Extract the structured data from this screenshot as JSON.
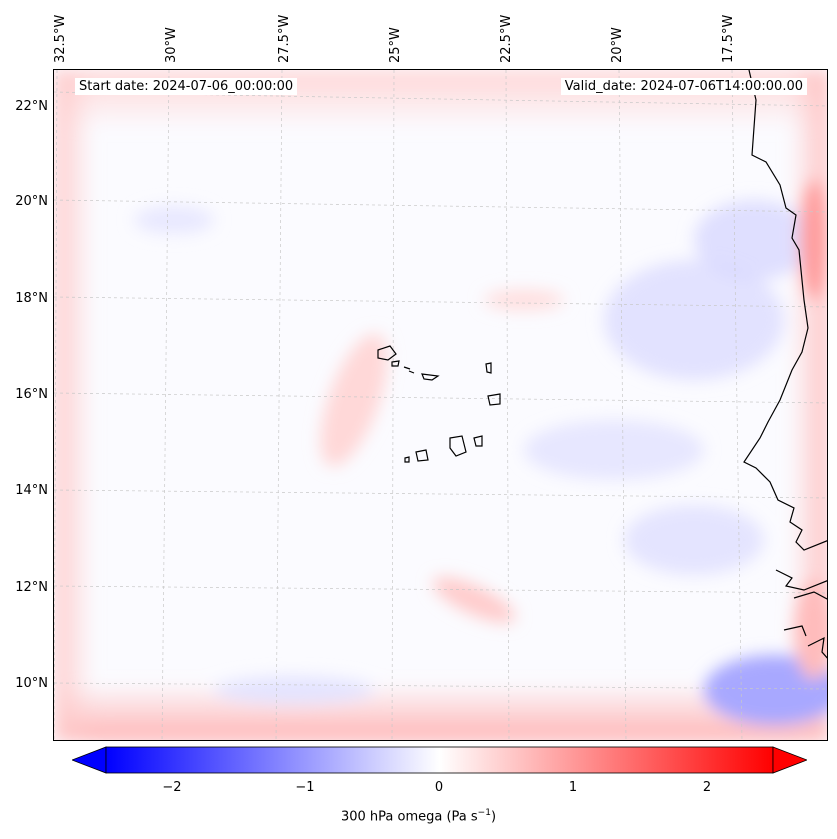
{
  "map": {
    "start_date": "Start date: 2024-07-06_00:00:00",
    "valid_date": "Valid_date: 2024-07-06T14:00:00.00",
    "longitude_labels": [
      "32.5°W",
      "30°W",
      "27.5°W",
      "25°W",
      "22.5°W",
      "20°W",
      "17.5°W"
    ],
    "latitude_labels": [
      "22°N",
      "20°N",
      "18°N",
      "16°N",
      "14°N",
      "12°N",
      "10°N"
    ]
  },
  "colorbar": {
    "tick_labels": [
      "−2",
      "−1",
      "0",
      "1",
      "2"
    ],
    "label_text": "300 hPa omega (Pa s",
    "label_exp": "−1",
    "label_close": ")",
    "range": [
      -2.5,
      2.5
    ],
    "colors": {
      "negative": "#0000ff",
      "zero": "#ffffff",
      "positive": "#ff0000"
    }
  },
  "colors": {
    "coastline": "#000000",
    "grid": "#c8c8c8",
    "background": "#fbfbff"
  }
}
